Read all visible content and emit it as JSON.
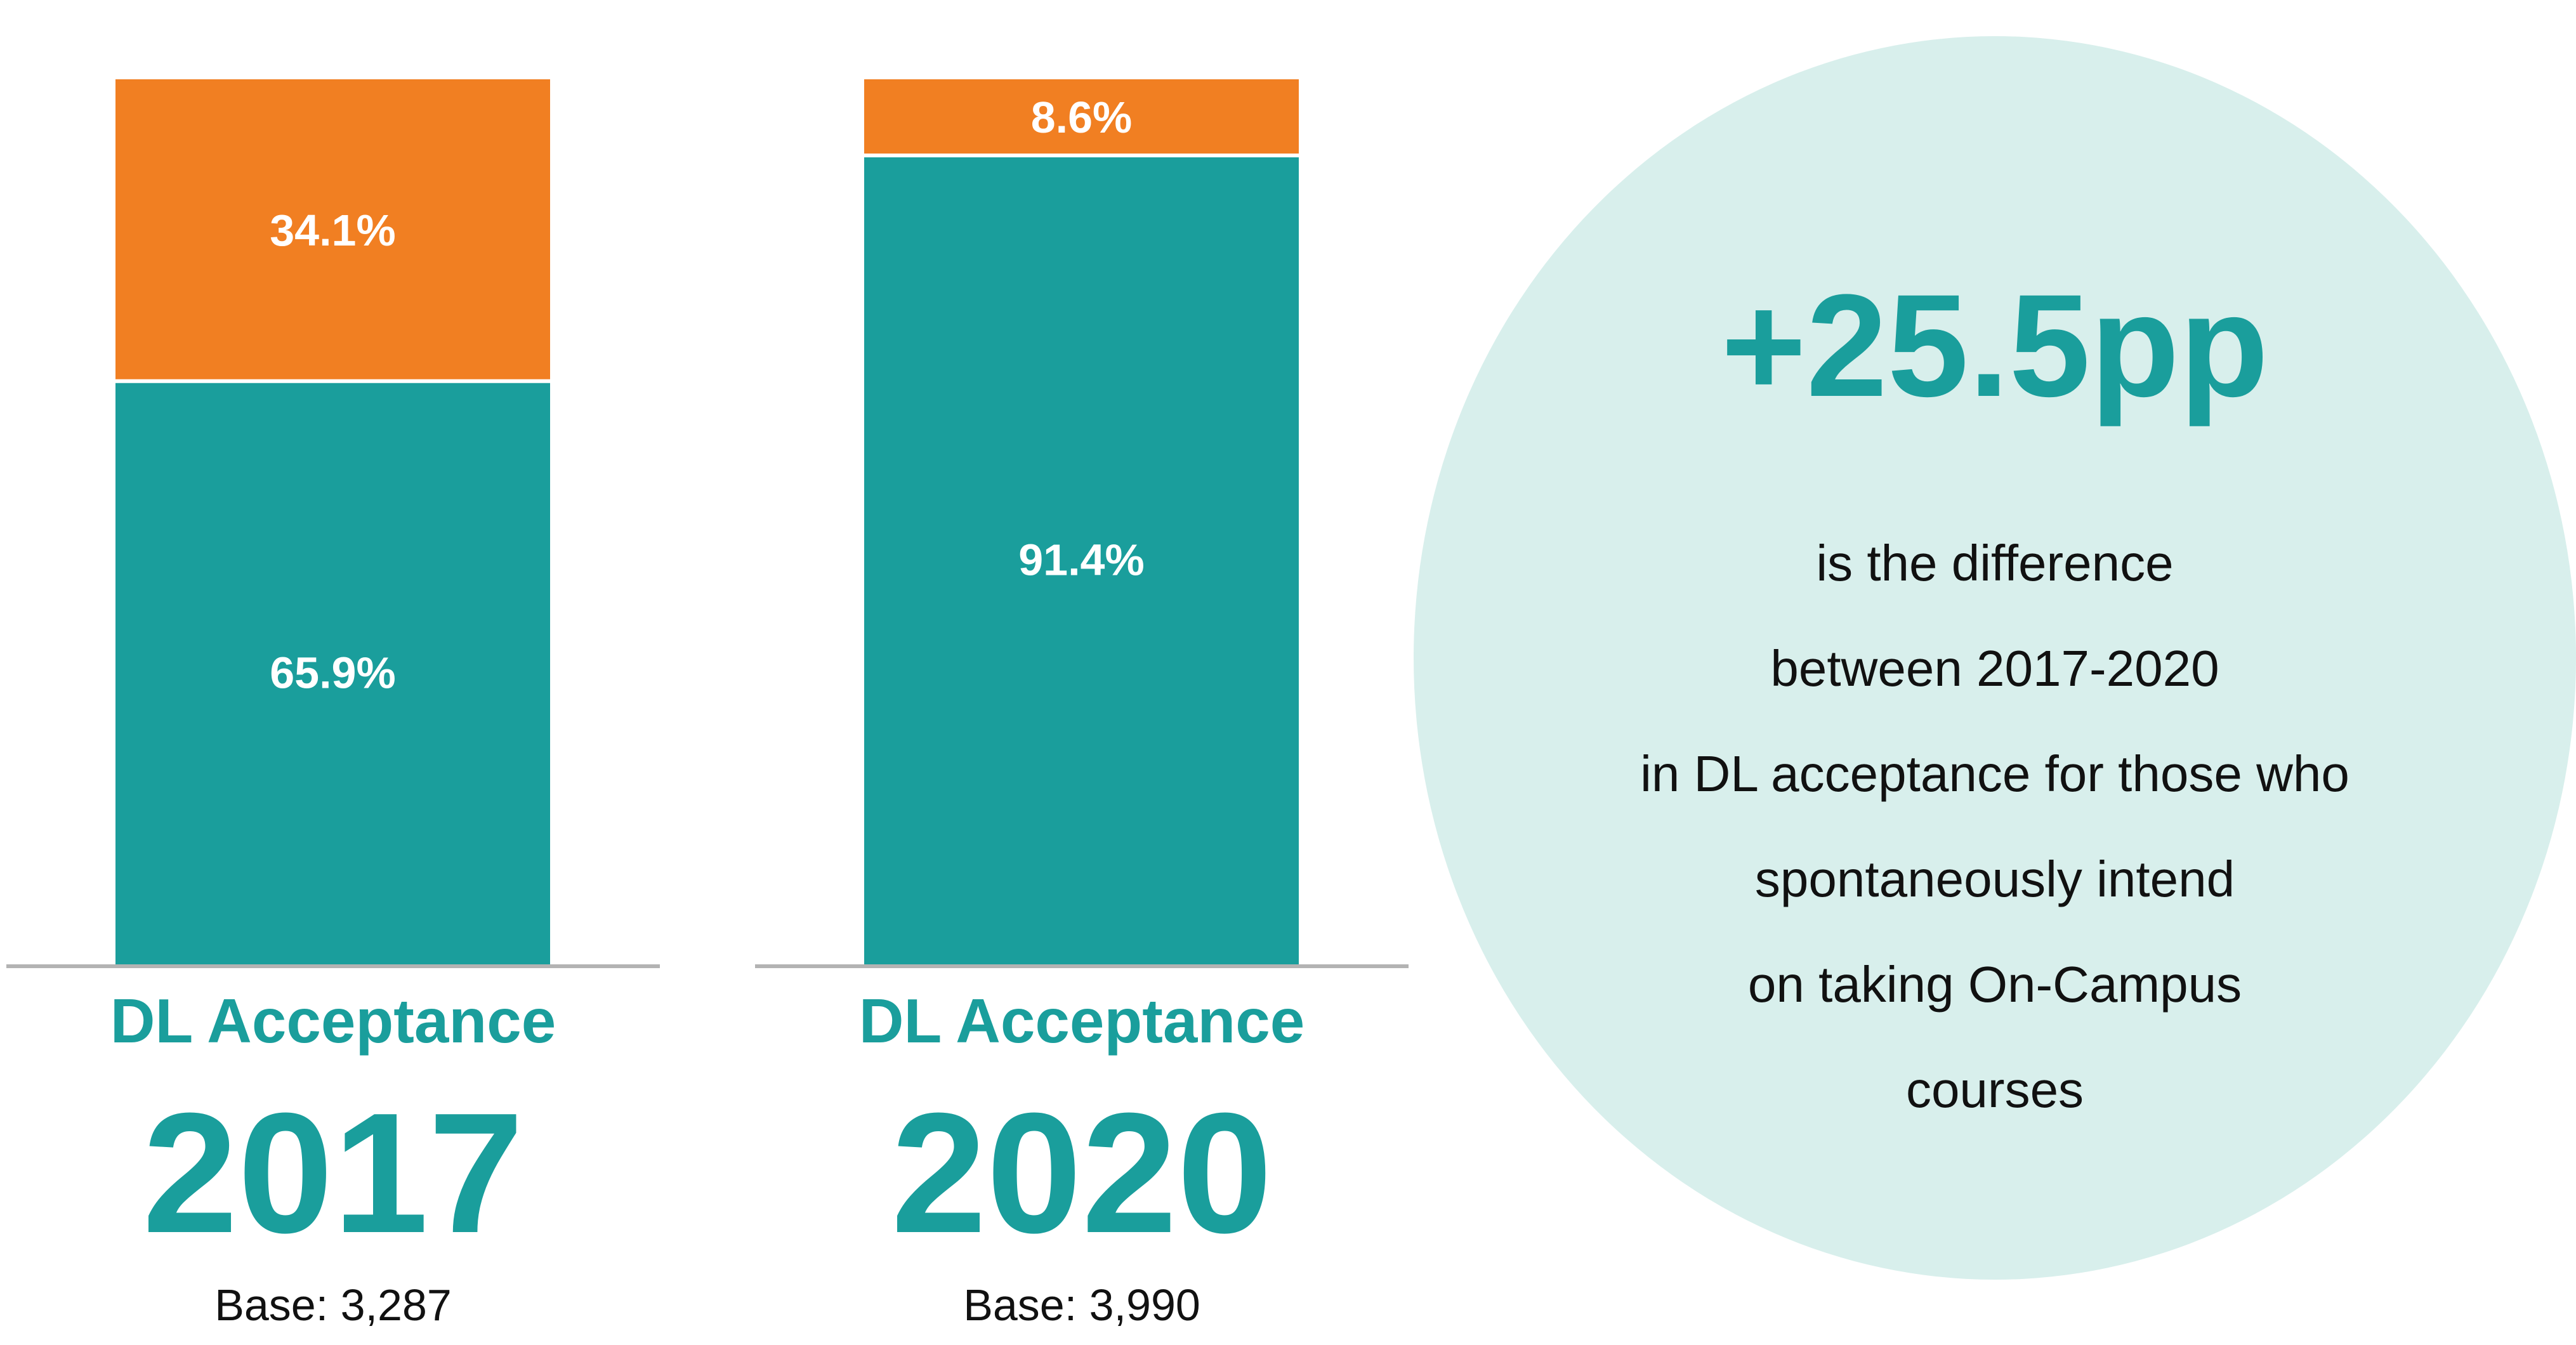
{
  "colors": {
    "teal": "#1a9e9c",
    "orange": "#f17f22",
    "bubble": "#d8efec",
    "baseline": "#b3b3b3"
  },
  "chart_data": [
    {
      "type": "bar",
      "stacked": true,
      "categories": [
        "2017"
      ],
      "ylim": [
        0,
        100
      ],
      "series": [
        {
          "values": [
            65.9
          ],
          "color": "#1a9e9c",
          "labels": [
            "65.9%"
          ]
        },
        {
          "values": [
            34.1
          ],
          "color": "#f17f22",
          "labels": [
            "34.1%"
          ]
        }
      ],
      "caption": "DL Acceptance",
      "year": "2017",
      "base": "Base: 3,287"
    },
    {
      "type": "bar",
      "stacked": true,
      "categories": [
        "2020"
      ],
      "ylim": [
        0,
        100
      ],
      "series": [
        {
          "values": [
            91.4
          ],
          "color": "#1a9e9c",
          "labels": [
            "91.4%"
          ]
        },
        {
          "values": [
            8.6
          ],
          "color": "#f17f22",
          "labels": [
            "8.6%"
          ]
        }
      ],
      "caption": "DL Acceptance",
      "year": "2020",
      "base": "Base: 3,990"
    }
  ],
  "callout": {
    "value": "+25.5pp",
    "lines": [
      "is the difference",
      "between 2017-2020",
      "in DL acceptance for those who",
      "spontaneously intend",
      "on taking On-Campus",
      "courses"
    ]
  }
}
